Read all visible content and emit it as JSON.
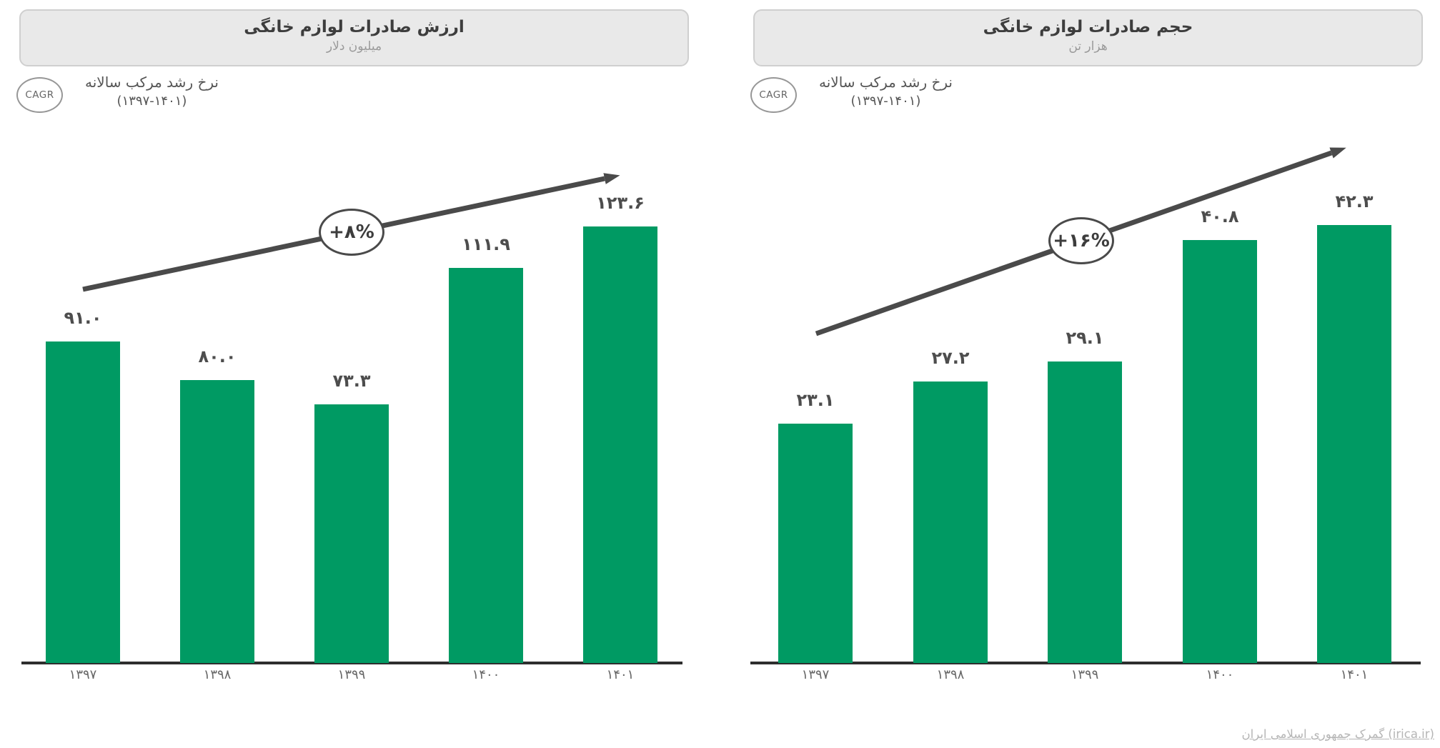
{
  "page": {
    "source_credit": "گمرک جمهوری اسلامی ایران (irica.ir)"
  },
  "colors": {
    "bar_green": "#009A63",
    "arrow_gray": "#4A4A4A",
    "title_text": "#3D3D3D",
    "subtitle_text": "#9A9A9A",
    "value_text": "#4D4D4D",
    "year_text": "#666666",
    "title_box_fill": "#E9E9E9",
    "title_box_border": "#CFCFCF",
    "axis_line": "#2E2E2E",
    "source_text": "#B5B5B5"
  },
  "cagr_annotation": {
    "badge": "CAGR",
    "line1": "نرخ رشد مرکب سالانه",
    "line2": "(۱۳۹۷-۱۴۰۱)"
  },
  "chart_data": [
    {
      "type": "bar",
      "title": "ارزش صادرات لوازم خانگی",
      "subtitle": "میلیون دلار",
      "categories": [
        "۱۳۹۷",
        "۱۳۹۸",
        "۱۳۹۹",
        "۱۴۰۰",
        "۱۴۰۱"
      ],
      "values": [
        91.0,
        80.0,
        73.3,
        111.9,
        123.6
      ],
      "value_labels": [
        "۹۱.۰",
        "۸۰.۰",
        "۷۳.۳",
        "۱۱۱.۹",
        "۱۲۳.۶"
      ],
      "growth_label": "+۸%",
      "cagr_percent": 8,
      "ylim": [
        0,
        130
      ],
      "legend": "none",
      "grid": "off"
    },
    {
      "type": "bar",
      "title": "حجم صادرات لوازم خانگی",
      "subtitle": "هزار تن",
      "categories": [
        "۱۳۹۷",
        "۱۳۹۸",
        "۱۳۹۹",
        "۱۴۰۰",
        "۱۴۰۱"
      ],
      "values": [
        23.1,
        27.2,
        29.1,
        40.8,
        42.3
      ],
      "value_labels": [
        "۲۳.۱",
        "۲۷.۲",
        "۲۹.۱",
        "۴۰.۸",
        "۴۲.۳"
      ],
      "growth_label": "+۱۶%",
      "cagr_percent": 16,
      "ylim": [
        0,
        45
      ],
      "legend": "none",
      "grid": "off"
    }
  ]
}
